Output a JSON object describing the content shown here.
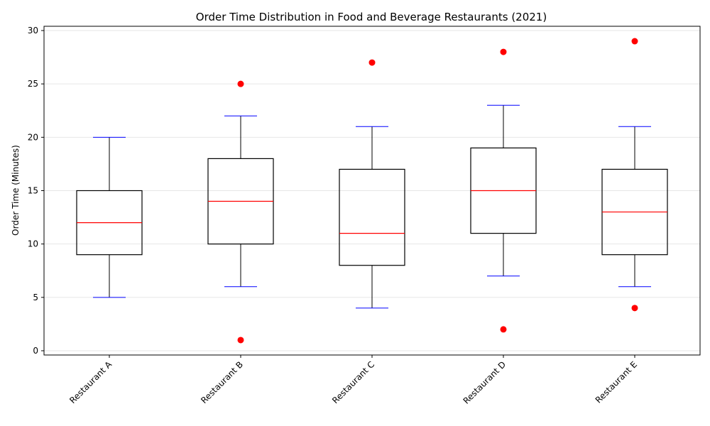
{
  "chart_data": {
    "type": "box",
    "title": "Order Time Distribution in Food and Beverage Restaurants (2021)",
    "xlabel": "",
    "ylabel": "Order Time (Minutes)",
    "ylim": [
      -0.4,
      30.4
    ],
    "yticks": [
      0,
      5,
      10,
      15,
      20,
      25,
      30
    ],
    "grid": "horizontal",
    "categories": [
      "Restaurant A",
      "Restaurant B",
      "Restaurant C",
      "Restaurant D",
      "Restaurant E"
    ],
    "boxes": [
      {
        "whisker_low": 5,
        "q1": 9,
        "median": 12,
        "q3": 15,
        "whisker_high": 20,
        "outliers": []
      },
      {
        "whisker_low": 6,
        "q1": 10,
        "median": 14,
        "q3": 18,
        "whisker_high": 22,
        "outliers": [
          1,
          25
        ]
      },
      {
        "whisker_low": 4,
        "q1": 8,
        "median": 11,
        "q3": 17,
        "whisker_high": 21,
        "outliers": [
          27
        ]
      },
      {
        "whisker_low": 7,
        "q1": 11,
        "median": 15,
        "q3": 19,
        "whisker_high": 23,
        "outliers": [
          2,
          28
        ]
      },
      {
        "whisker_low": 6,
        "q1": 9,
        "median": 13,
        "q3": 17,
        "whisker_high": 21,
        "outliers": [
          4,
          29
        ]
      }
    ],
    "colors": {
      "box_edge": "#000000",
      "median": "#ff0000",
      "cap": "#0000ff",
      "outlier": "#ff0000",
      "grid": "#e6e6e6"
    }
  }
}
